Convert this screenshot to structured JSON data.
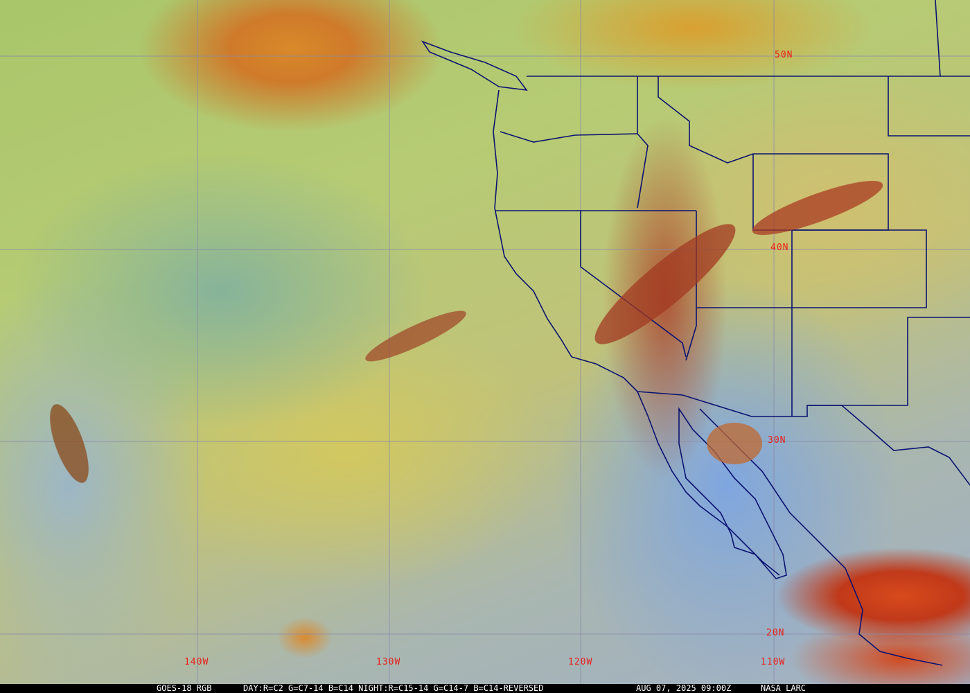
{
  "caption": {
    "product": "GOES-18 RGB",
    "recipe": "DAY:R=C2 G=C7-14 B=C14 NIGHT:R=C15-14 G=C14-7 B=C14-REVERSED",
    "timestamp": "AUG 07, 2025 09:00Z",
    "source": "NASA LARC"
  },
  "latitude_labels": [
    "50N",
    "40N",
    "30N",
    "20N"
  ],
  "longitude_labels": [
    "140W",
    "130W",
    "120W",
    "110W"
  ],
  "colors": {
    "grid": "#8a8aa8",
    "borders": "#0a1270",
    "labels": "#e8201a"
  }
}
